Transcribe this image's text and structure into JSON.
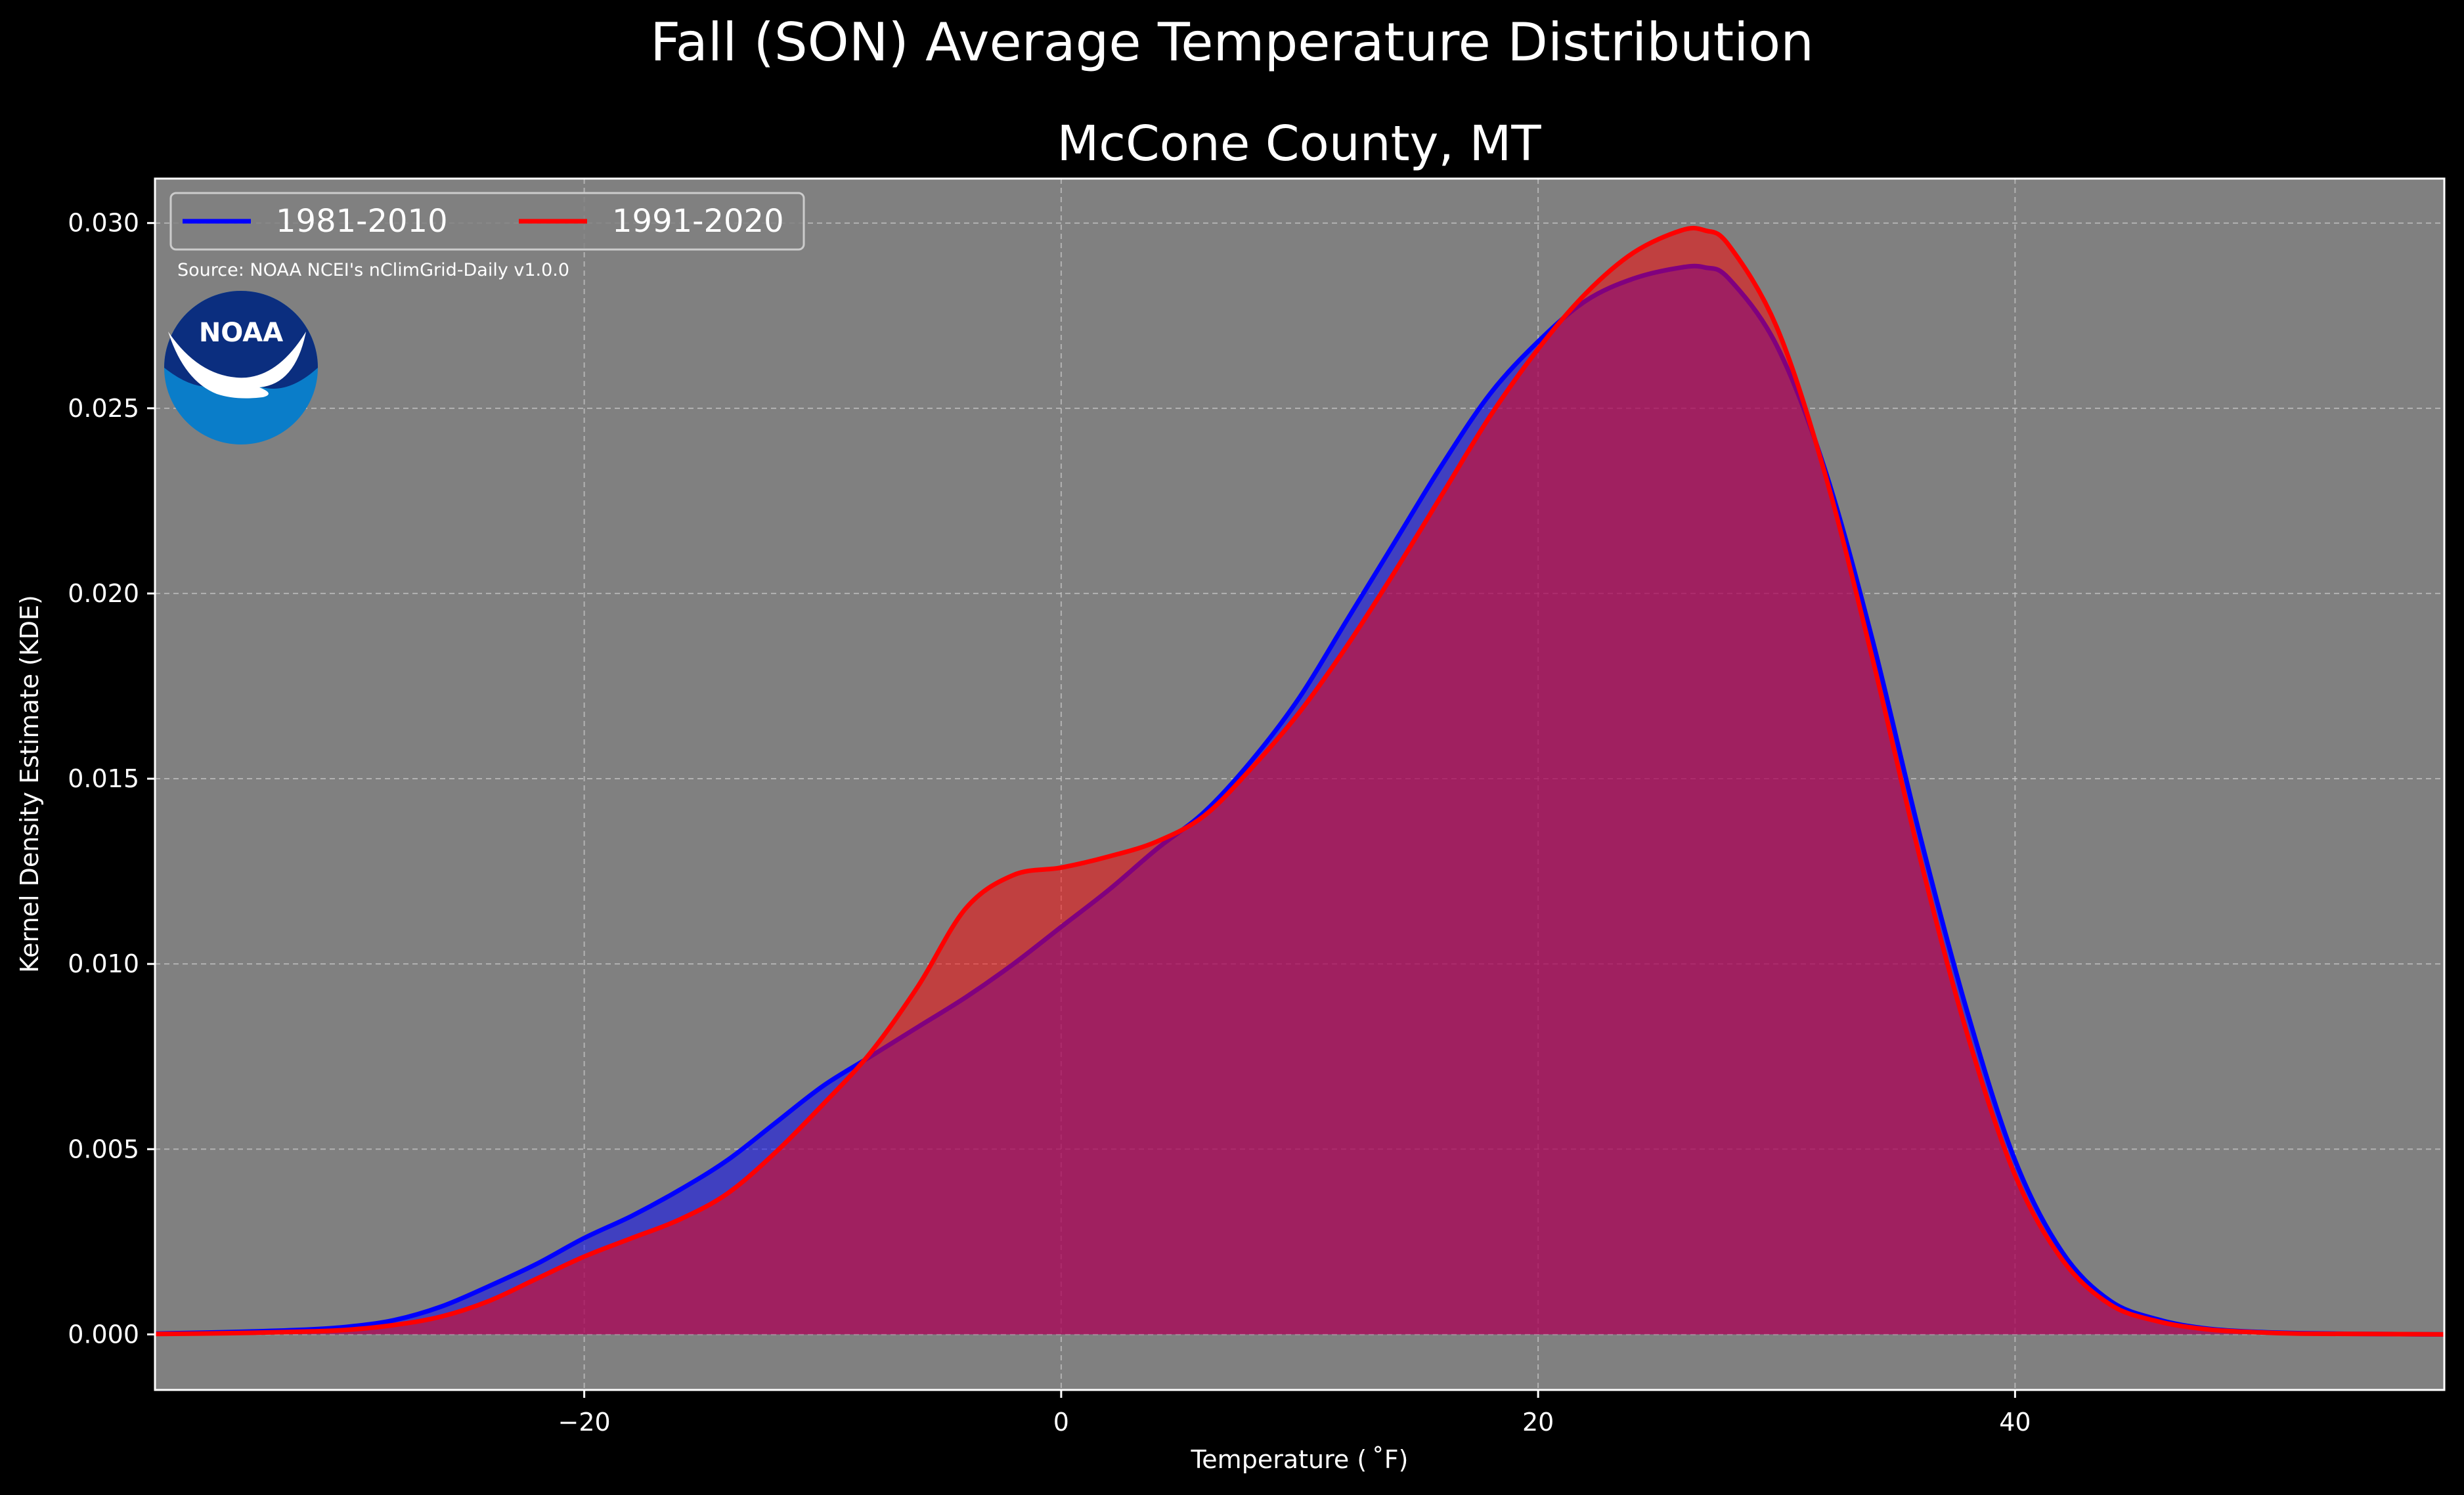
{
  "chart_data": {
    "type": "area",
    "title": "Fall (SON) Average Temperature Distribution",
    "subtitle": "McCone County, MT",
    "xlabel": "Temperature ($^\\circ$F)",
    "xlabel_display": "Temperature ( ˚F)",
    "ylabel": "Kernel Density Estimate (KDE)",
    "xlim": [
      -38,
      58
    ],
    "ylim": [
      -0.0015,
      0.0312
    ],
    "x_ticks": [
      -20,
      0,
      20,
      40
    ],
    "x_tick_labels": [
      "−20",
      "0",
      "20",
      "40"
    ],
    "y_ticks": [
      0.0,
      0.005,
      0.01,
      0.015,
      0.02,
      0.025,
      0.03
    ],
    "y_tick_labels": [
      "0.000",
      "0.005",
      "0.010",
      "0.015",
      "0.020",
      "0.025",
      "0.030"
    ],
    "grid": true,
    "legend_position": "top-left",
    "source_note": "Source: NOAA NCEI's nClimGrid-Daily v1.0.0",
    "logo_text": "NOAA",
    "x": [
      -38,
      -35,
      -32,
      -30,
      -28,
      -26,
      -24,
      -22,
      -20,
      -18,
      -16,
      -14,
      -12,
      -10,
      -8,
      -6,
      -4,
      -2,
      0,
      2,
      4,
      6,
      8,
      10,
      12,
      14,
      16,
      18,
      20,
      22,
      24,
      26,
      27,
      28,
      30,
      32,
      34,
      36,
      38,
      40,
      42,
      44,
      46,
      48,
      50,
      52,
      55,
      58
    ],
    "series": [
      {
        "name": "1981-2010",
        "color": "#0000ff",
        "values": [
          2e-05,
          6e-05,
          0.00012,
          0.0002,
          0.00038,
          0.00075,
          0.0013,
          0.0019,
          0.0026,
          0.0032,
          0.0039,
          0.0047,
          0.0057,
          0.0067,
          0.0075,
          0.0083,
          0.0091,
          0.01,
          0.011,
          0.012,
          0.0131,
          0.0141,
          0.0155,
          0.0172,
          0.0193,
          0.0214,
          0.0235,
          0.0254,
          0.0268,
          0.0279,
          0.0285,
          0.0288,
          0.0288,
          0.0285,
          0.0267,
          0.0234,
          0.0188,
          0.0135,
          0.0087,
          0.0047,
          0.0022,
          0.0009,
          0.0004,
          0.00016,
          7e-05,
          3e-05,
          1e-05,
          0.0
        ]
      },
      {
        "name": "1991-2020",
        "color": "#ff0000",
        "values": [
          1e-05,
          3e-05,
          7e-05,
          0.00012,
          0.00025,
          0.00048,
          0.0009,
          0.0015,
          0.0021,
          0.0026,
          0.0031,
          0.0038,
          0.0049,
          0.0062,
          0.0076,
          0.0094,
          0.0115,
          0.0124,
          0.0126,
          0.0129,
          0.0133,
          0.014,
          0.0153,
          0.0168,
          0.0186,
          0.0206,
          0.0227,
          0.0248,
          0.0266,
          0.0281,
          0.0292,
          0.0298,
          0.0298,
          0.0294,
          0.0272,
          0.0233,
          0.0183,
          0.0129,
          0.0081,
          0.0043,
          0.002,
          0.0008,
          0.00035,
          0.00014,
          6e-05,
          2e-05,
          1e-05,
          0.0
        ]
      }
    ]
  }
}
